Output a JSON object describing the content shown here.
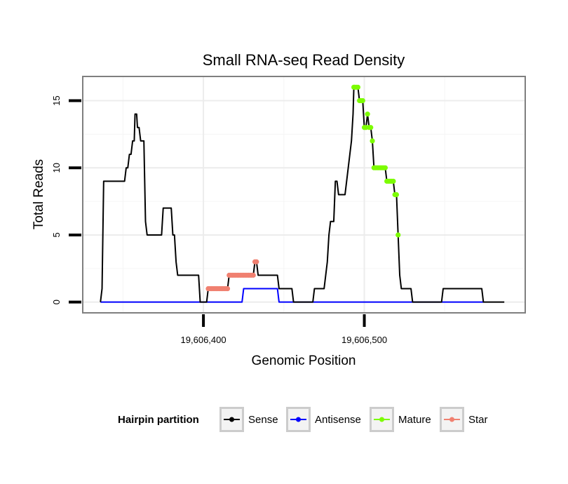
{
  "chart_data": {
    "type": "line",
    "title": "Small RNA-seq Read Density",
    "xlabel": "Genomic Position",
    "ylabel": "Total Reads",
    "xlim": [
      19606325,
      19606600
    ],
    "ylim": [
      -0.8,
      16.8
    ],
    "xticks": [
      19606400,
      19606500
    ],
    "xtick_labels": [
      "19,606,400",
      "19,606,500"
    ],
    "yticks": [
      0,
      5,
      10,
      15
    ],
    "ytick_labels": [
      "0",
      "5",
      "10",
      "15"
    ],
    "grid": true,
    "legend": {
      "title": "Hairpin partition",
      "position": "bottom",
      "entries": [
        "Sense",
        "Antisense",
        "Mature",
        "Star"
      ]
    },
    "series": [
      {
        "name": "Sense",
        "color": "#000000",
        "style": "line",
        "points": [
          [
            19606336,
            0
          ],
          [
            19606337,
            1
          ],
          [
            19606338,
            9
          ],
          [
            19606351,
            9
          ],
          [
            19606352,
            10
          ],
          [
            19606353,
            10
          ],
          [
            19606354,
            11
          ],
          [
            19606355,
            11
          ],
          [
            19606356,
            12
          ],
          [
            19606357,
            12
          ],
          [
            19606357.5,
            14
          ],
          [
            19606358.5,
            14
          ],
          [
            19606359,
            13
          ],
          [
            19606360,
            13
          ],
          [
            19606361,
            12
          ],
          [
            19606363,
            12
          ],
          [
            19606364,
            6
          ],
          [
            19606365,
            5
          ],
          [
            19606374,
            5
          ],
          [
            19606375,
            7
          ],
          [
            19606380,
            7
          ],
          [
            19606381,
            5
          ],
          [
            19606382,
            5
          ],
          [
            19606383,
            3
          ],
          [
            19606384,
            2
          ],
          [
            19606397,
            2
          ],
          [
            19606398,
            0
          ],
          [
            19606402,
            0
          ],
          [
            19606403,
            1
          ],
          [
            19606415,
            1
          ],
          [
            19606416,
            2
          ],
          [
            19606431,
            2
          ],
          [
            19606432,
            3
          ],
          [
            19606433,
            3
          ],
          [
            19606434,
            2
          ],
          [
            19606446,
            2
          ],
          [
            19606447,
            1
          ],
          [
            19606455,
            1
          ],
          [
            19606456,
            0
          ],
          [
            19606468,
            0
          ],
          [
            19606469,
            1
          ],
          [
            19606475,
            1
          ],
          [
            19606476,
            2
          ],
          [
            19606477,
            3
          ],
          [
            19606478,
            5
          ],
          [
            19606479,
            6
          ],
          [
            19606481,
            6
          ],
          [
            19606482,
            9
          ],
          [
            19606483,
            9
          ],
          [
            19606484,
            8
          ],
          [
            19606488,
            8
          ],
          [
            19606489,
            9
          ],
          [
            19606490,
            10
          ],
          [
            19606491,
            11
          ],
          [
            19606492,
            12
          ],
          [
            19606493,
            14
          ],
          [
            19606493.5,
            16
          ],
          [
            19606496,
            16
          ],
          [
            19606497,
            15
          ],
          [
            19606499,
            15
          ],
          [
            19606500,
            13
          ],
          [
            19606501,
            13
          ],
          [
            19606502,
            14
          ],
          [
            19606503,
            13
          ],
          [
            19606504,
            13
          ],
          [
            19606505,
            12
          ],
          [
            19606506,
            10
          ],
          [
            19606513,
            10
          ],
          [
            19606514,
            9
          ],
          [
            19606518,
            9
          ],
          [
            19606519,
            8
          ],
          [
            19606520,
            8
          ],
          [
            19606521,
            5
          ],
          [
            19606522,
            2
          ],
          [
            19606523,
            1
          ],
          [
            19606529,
            1
          ],
          [
            19606530,
            0
          ],
          [
            19606548,
            0
          ],
          [
            19606549,
            1
          ],
          [
            19606573,
            1
          ],
          [
            19606574,
            0
          ],
          [
            19606587,
            0
          ]
        ]
      },
      {
        "name": "Antisense",
        "color": "#0000ff",
        "style": "line",
        "points": [
          [
            19606336,
            0
          ],
          [
            19606424,
            0
          ],
          [
            19606425,
            1
          ],
          [
            19606446,
            1
          ],
          [
            19606447,
            0
          ],
          [
            19606574,
            0
          ]
        ]
      },
      {
        "name": "Mature",
        "color": "#7cfc00",
        "style": "points",
        "points": [
          [
            19606493.5,
            16
          ],
          [
            19606494,
            16
          ],
          [
            19606495,
            16
          ],
          [
            19606496,
            16
          ],
          [
            19606497,
            15
          ],
          [
            19606498,
            15
          ],
          [
            19606499,
            15
          ],
          [
            19606500,
            13
          ],
          [
            19606501,
            13
          ],
          [
            19606502,
            14
          ],
          [
            19606503,
            13
          ],
          [
            19606504,
            13
          ],
          [
            19606505,
            12
          ],
          [
            19606506,
            10
          ],
          [
            19606507,
            10
          ],
          [
            19606508,
            10
          ],
          [
            19606509,
            10
          ],
          [
            19606510,
            10
          ],
          [
            19606511,
            10
          ],
          [
            19606512,
            10
          ],
          [
            19606513,
            10
          ],
          [
            19606514,
            9
          ],
          [
            19606515,
            9
          ],
          [
            19606516,
            9
          ],
          [
            19606517,
            9
          ],
          [
            19606518,
            9
          ],
          [
            19606519,
            8
          ],
          [
            19606520,
            8
          ],
          [
            19606521,
            5
          ]
        ]
      },
      {
        "name": "Star",
        "color": "#f08070",
        "style": "points",
        "points": [
          [
            19606403,
            1
          ],
          [
            19606404,
            1
          ],
          [
            19606405,
            1
          ],
          [
            19606406,
            1
          ],
          [
            19606407,
            1
          ],
          [
            19606408,
            1
          ],
          [
            19606409,
            1
          ],
          [
            19606410,
            1
          ],
          [
            19606411,
            1
          ],
          [
            19606412,
            1
          ],
          [
            19606413,
            1
          ],
          [
            19606414,
            1
          ],
          [
            19606415,
            1
          ],
          [
            19606416,
            2
          ],
          [
            19606417,
            2
          ],
          [
            19606418,
            2
          ],
          [
            19606419,
            2
          ],
          [
            19606420,
            2
          ],
          [
            19606421,
            2
          ],
          [
            19606422,
            2
          ],
          [
            19606423,
            2
          ],
          [
            19606424,
            2
          ],
          [
            19606425,
            2
          ],
          [
            19606426,
            2
          ],
          [
            19606427,
            2
          ],
          [
            19606428,
            2
          ],
          [
            19606429,
            2
          ],
          [
            19606430,
            2
          ],
          [
            19606431,
            2
          ],
          [
            19606432,
            3
          ],
          [
            19606433,
            3
          ]
        ]
      }
    ]
  }
}
